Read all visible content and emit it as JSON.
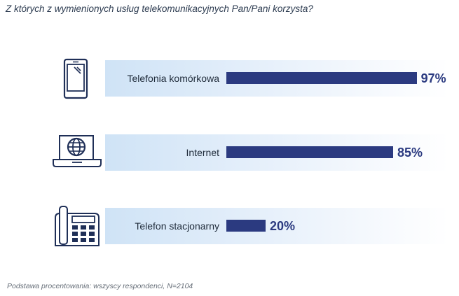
{
  "question": "Z których z wymienionych usług telekomunikacyjnych Pan/Pani korzysta?",
  "footnote": "Podstawa procentowania: wszyscy respondenci, N=2104",
  "colors": {
    "bar": "#2b3a80",
    "band": "#cfe3f6",
    "icon": "#1f2f57"
  },
  "chart_data": {
    "type": "bar",
    "orientation": "horizontal",
    "categories": [
      "Telefonia komórkowa",
      "Internet",
      "Telefon stacjonarny"
    ],
    "values": [
      97,
      85,
      20
    ],
    "value_labels": [
      "97%",
      "85%",
      "20%"
    ],
    "icons": [
      "mobile-phone-icon",
      "laptop-globe-icon",
      "desk-phone-icon"
    ],
    "xlim": [
      0,
      100
    ]
  }
}
